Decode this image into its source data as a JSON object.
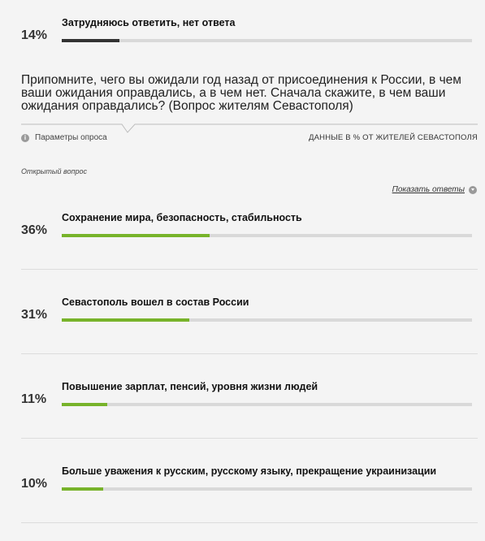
{
  "top_answer": {
    "label": "Затрудняюсь ответить, нет ответа",
    "value": 14,
    "value_text": "14%",
    "color": "#333333"
  },
  "question": {
    "text": "Припомните, чего вы ожидали год назад от присоединения к России, в чем ваши ожидания оправдались, а в чем нет. Сначала скажите, в чем ваши ожидания оправдались? (Вопрос жителям Севастополя)",
    "params_label": "Параметры опроса",
    "source": "ДАННЫЕ В % ОТ ЖИТЕЛЕЙ СЕВАСТОПОЛЯ",
    "open_question": "Открытый вопрос",
    "show_answers": "Показать ответы"
  },
  "bar_color": "#77b32a",
  "chart_data": {
    "type": "bar",
    "categories": [
      "Сохранение мира, безопасность, стабильность",
      "Севастополь вошел в состав России",
      "Повышение зарплат, пенсий, уровня жизни людей",
      "Больше уважения к русским, русскому языку, прекращение украинизации"
    ],
    "values": [
      36,
      31,
      11,
      10
    ],
    "value_labels": [
      "36%",
      "31%",
      "11%",
      "10%"
    ],
    "xlim": [
      0,
      100
    ]
  }
}
